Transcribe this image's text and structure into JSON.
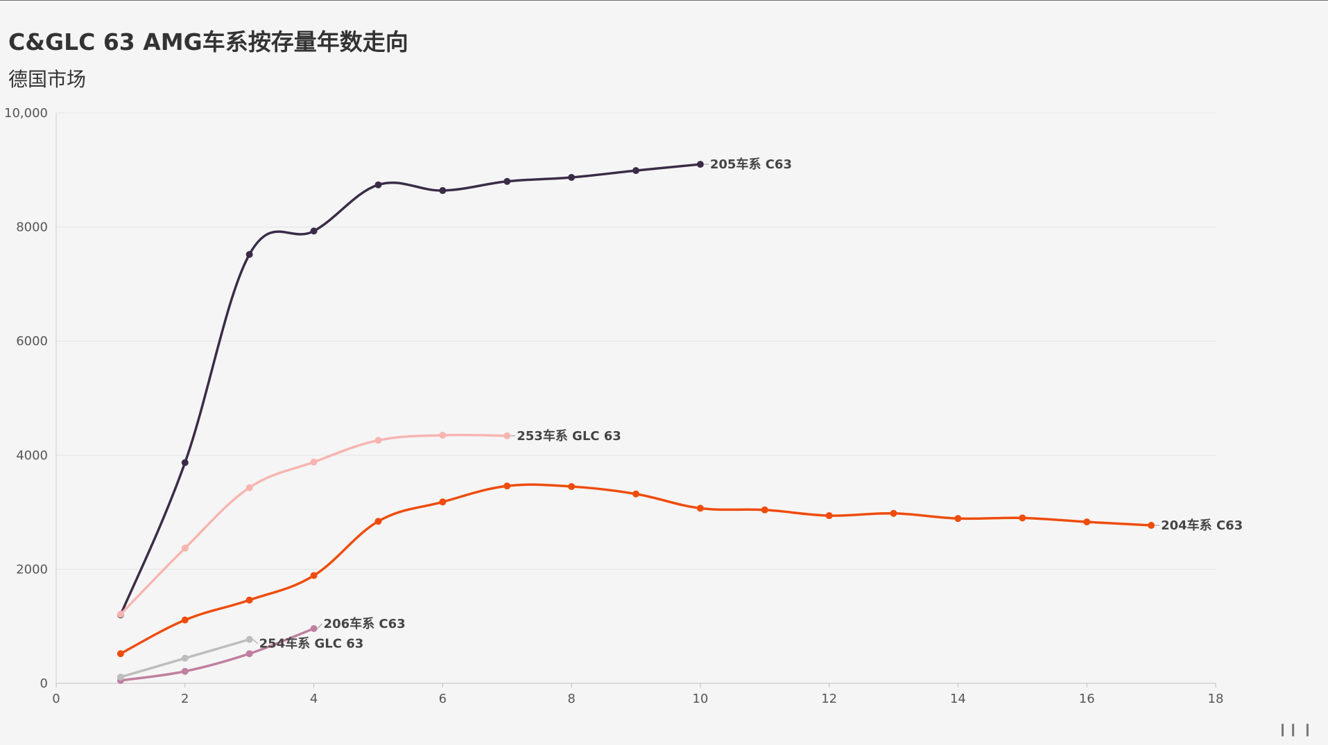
{
  "header": {
    "title": "C&GLC 63 AMG车系按存量年数走向",
    "subtitle": "德国市场"
  },
  "chart_data": {
    "type": "line",
    "title": "C&GLC 63 AMG车系按存量年数走向",
    "subtitle": "德国市场",
    "xlabel": "",
    "ylabel": "",
    "xlim": [
      0,
      18
    ],
    "ylim": [
      0,
      10000
    ],
    "x_ticks": [
      "0",
      "2",
      "4",
      "6",
      "8",
      "10",
      "12",
      "14",
      "16",
      "18"
    ],
    "y_ticks": [
      "0",
      "2000",
      "4000",
      "6000",
      "8000",
      "10,000"
    ],
    "grid": true,
    "legend": "inline labels at line ends",
    "series": [
      {
        "name": "205车系 C63",
        "color": "#3a2c47",
        "x": [
          1,
          2,
          3,
          4,
          5,
          6,
          7,
          8,
          9,
          10
        ],
        "values": [
          1200,
          3870,
          7520,
          7930,
          8740,
          8640,
          8800,
          8870,
          8990,
          9100
        ]
      },
      {
        "name": "253车系 GLC 63",
        "color": "#f7b5b1",
        "x": [
          1,
          2,
          3,
          4,
          5,
          6,
          7
        ],
        "values": [
          1210,
          2370,
          3430,
          3880,
          4260,
          4350,
          4340
        ]
      },
      {
        "name": "204车系 C63",
        "color": "#ee4c0c",
        "x": [
          1,
          2,
          3,
          4,
          5,
          6,
          7,
          8,
          9,
          10,
          11,
          12,
          13,
          14,
          15,
          16,
          17
        ],
        "values": [
          520,
          1110,
          1460,
          1890,
          2840,
          3180,
          3460,
          3450,
          3320,
          3070,
          3040,
          2940,
          2980,
          2890,
          2900,
          2830,
          2770
        ]
      },
      {
        "name": "206车系 C63",
        "color": "#c07fa0",
        "x": [
          1,
          2,
          3,
          4
        ],
        "values": [
          50,
          210,
          520,
          960
        ]
      },
      {
        "name": "254车系 GLC 63",
        "color": "#bdbdbd",
        "x": [
          1,
          2,
          3
        ],
        "values": [
          110,
          440,
          770
        ]
      }
    ]
  }
}
